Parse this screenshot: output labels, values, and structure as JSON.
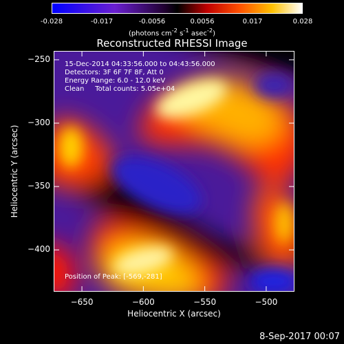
{
  "chart_data": {
    "type": "heatmap",
    "title": "Reconstructed RHESSI Image",
    "xlabel": "Heliocentric X (arcsec)",
    "ylabel": "Heliocentric Y (arcsec)",
    "xlim": [
      -673,
      -477
    ],
    "ylim": [
      -433,
      -243
    ],
    "x_ticks": [
      -650,
      -600,
      -550,
      -500
    ],
    "y_ticks": [
      -250,
      -300,
      -350,
      -400
    ],
    "colorbar": {
      "ticks": [
        "-0.028",
        "-0.017",
        "-0.0056",
        "0.0056",
        "0.017",
        "0.028"
      ],
      "units": "(photons cm",
      "units_exp1": "-2",
      "units_mid": " s",
      "units_exp2": "-1",
      "units_end": " asec",
      "units_exp3": "-2",
      "units_close": ")",
      "range": [
        -0.028,
        0.028
      ]
    },
    "annotations": {
      "time_range": "15-Dec-2014 04:33:56.000 to 04:43:56.000",
      "detectors": "Detectors: 3F 6F 7F 8F, Att 0",
      "energy": "Energy Range: 6.0 - 12.0 keV",
      "clean": "Clean     Total counts: 5.05e+04",
      "peak": "Position of Peak: [-569,-281]"
    },
    "footer_date": "8-Sep-2017 00:07"
  }
}
